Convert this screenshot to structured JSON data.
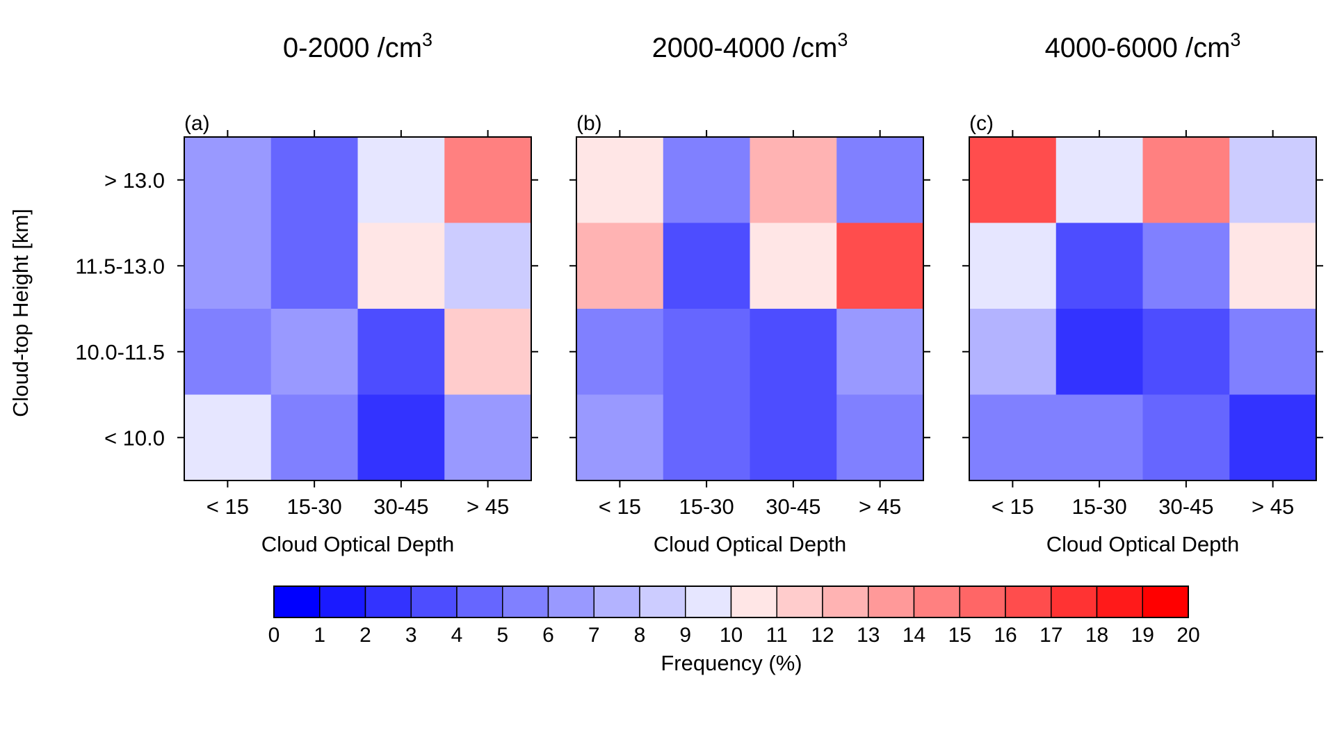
{
  "chart_data": {
    "type": "heatmap",
    "colorbar": {
      "label": "Frequency (%)",
      "min": 0,
      "max": 20,
      "step": 1,
      "tick_labels": [
        "0",
        "1",
        "2",
        "3",
        "4",
        "5",
        "6",
        "7",
        "8",
        "9",
        "10",
        "11",
        "12",
        "13",
        "14",
        "15",
        "16",
        "17",
        "18",
        "19",
        "20"
      ],
      "colors": [
        "#0000ff",
        "#1a1aff",
        "#3333ff",
        "#4d4dff",
        "#6666ff",
        "#8080ff",
        "#9999ff",
        "#b3b3ff",
        "#ccccff",
        "#e6e6ff",
        "#ffe6e6",
        "#ffcccc",
        "#ffb3b3",
        "#ff9999",
        "#ff8080",
        "#ff6666",
        "#ff4d4d",
        "#ff3333",
        "#ff1a1a",
        "#ff0000"
      ]
    },
    "xlabel": "Cloud Optical Depth",
    "ylabel": "Cloud-top Height [km]",
    "x_categories": [
      "< 15",
      "15-30",
      "30-45",
      "> 45"
    ],
    "y_categories": [
      "> 13.0",
      "11.5-13.0",
      "10.0-11.5",
      "< 10.0"
    ],
    "panels": [
      {
        "label": "(a)",
        "title_main": "0-2000 /cm",
        "title_sup": "3",
        "values": [
          [
            6.5,
            4.5,
            9.5,
            14.5
          ],
          [
            6.5,
            4.5,
            10.5,
            8.5
          ],
          [
            5.5,
            6.5,
            3.5,
            11.5
          ],
          [
            9.5,
            5.5,
            2.5,
            6.5
          ]
        ]
      },
      {
        "label": "(b)",
        "title_main": "2000-4000 /cm",
        "title_sup": "3",
        "values": [
          [
            10.5,
            5.5,
            12.5,
            5.5
          ],
          [
            12.5,
            3.5,
            10.5,
            16.5
          ],
          [
            5.5,
            4.5,
            3.5,
            6.5
          ],
          [
            6.5,
            4.5,
            3.5,
            5.5
          ]
        ]
      },
      {
        "label": "(c)",
        "title_main": "4000-6000 /cm",
        "title_sup": "3",
        "values": [
          [
            16.5,
            9.5,
            14.5,
            8.5
          ],
          [
            9.5,
            3.5,
            5.5,
            10.5
          ],
          [
            7.5,
            2.5,
            3.5,
            5.5
          ],
          [
            5.5,
            5.5,
            4.5,
            2.5
          ]
        ]
      }
    ]
  }
}
